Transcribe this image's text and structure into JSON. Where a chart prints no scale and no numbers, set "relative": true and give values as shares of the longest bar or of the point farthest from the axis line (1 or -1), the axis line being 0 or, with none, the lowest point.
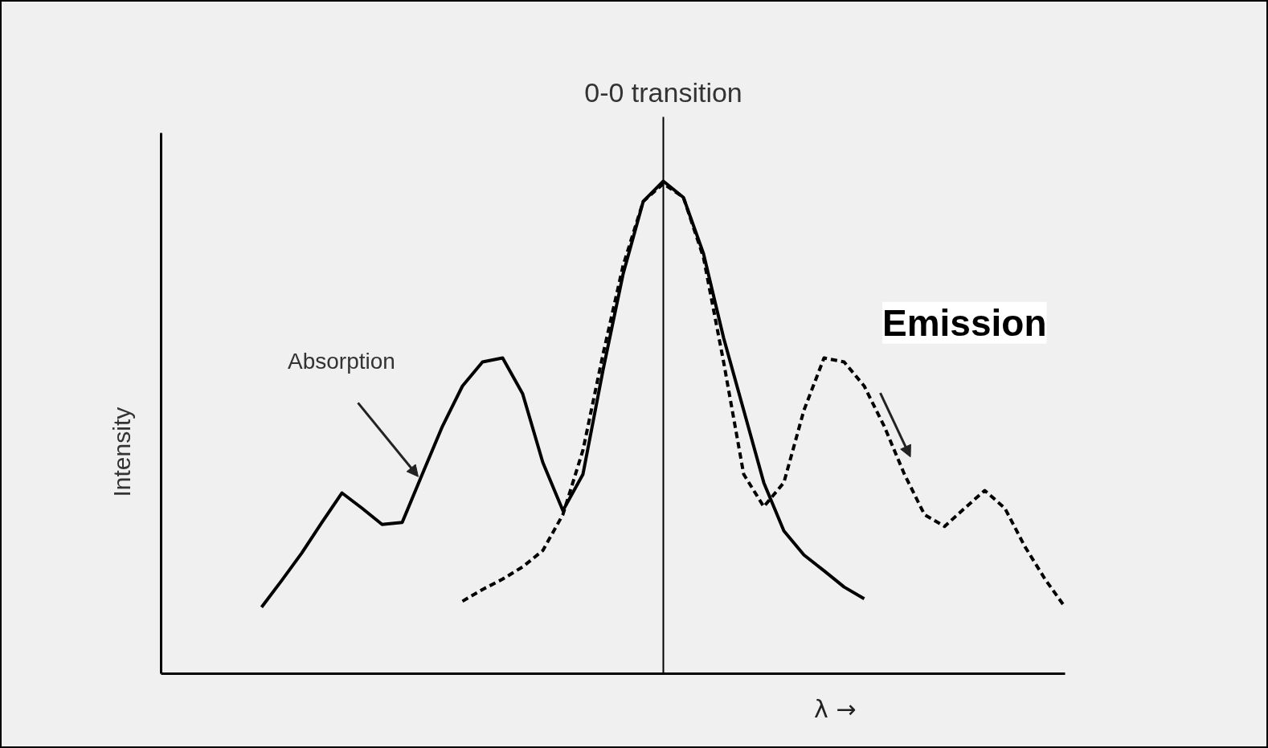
{
  "chart_data": {
    "type": "line",
    "relative": true,
    "xlabel": "λ →",
    "ylabel": "Intensity",
    "categories": [
      null,
      null,
      null,
      null,
      null,
      null,
      null,
      null,
      null,
      null,
      null,
      null,
      null,
      null,
      null,
      null,
      null,
      null,
      null,
      null,
      null,
      null,
      null,
      null,
      null,
      null,
      null,
      null,
      null,
      null,
      null,
      null,
      null,
      null,
      null,
      null,
      null,
      null,
      null,
      null,
      null,
      null,
      null,
      null,
      null,
      null
    ],
    "series": [
      {
        "name": "Absorption",
        "color": "#000000",
        "line_style": "solid",
        "values": [
          null,
          null,
          null,
          null,
          null,
          0.135,
          0.189,
          0.245,
          0.307,
          0.367,
          0.336,
          0.303,
          0.307,
          0.405,
          0.502,
          0.584,
          0.633,
          0.641,
          0.568,
          0.429,
          0.331,
          0.405,
          0.617,
          0.812,
          0.959,
          1.0,
          0.967,
          0.853,
          0.682,
          0.535,
          0.388,
          0.29,
          0.241,
          0.209,
          0.176,
          0.152,
          null,
          null,
          null,
          null,
          null,
          null,
          null,
          null,
          null,
          null
        ]
      },
      {
        "name": "Emission",
        "color": "#000000",
        "line_style": "dashed",
        "values": [
          null,
          null,
          null,
          null,
          null,
          null,
          null,
          null,
          null,
          null,
          null,
          null,
          null,
          null,
          null,
          0.147,
          0.171,
          0.192,
          0.217,
          0.25,
          0.323,
          0.454,
          0.649,
          0.829,
          0.959,
          0.995,
          0.967,
          0.845,
          0.633,
          0.405,
          0.339,
          0.388,
          0.535,
          0.641,
          0.633,
          0.584,
          0.502,
          0.405,
          0.323,
          0.299,
          0.336,
          0.372,
          0.336,
          0.258,
          0.192,
          0.135
        ]
      }
    ],
    "annotations": [
      "0-0 transition"
    ]
  }
}
